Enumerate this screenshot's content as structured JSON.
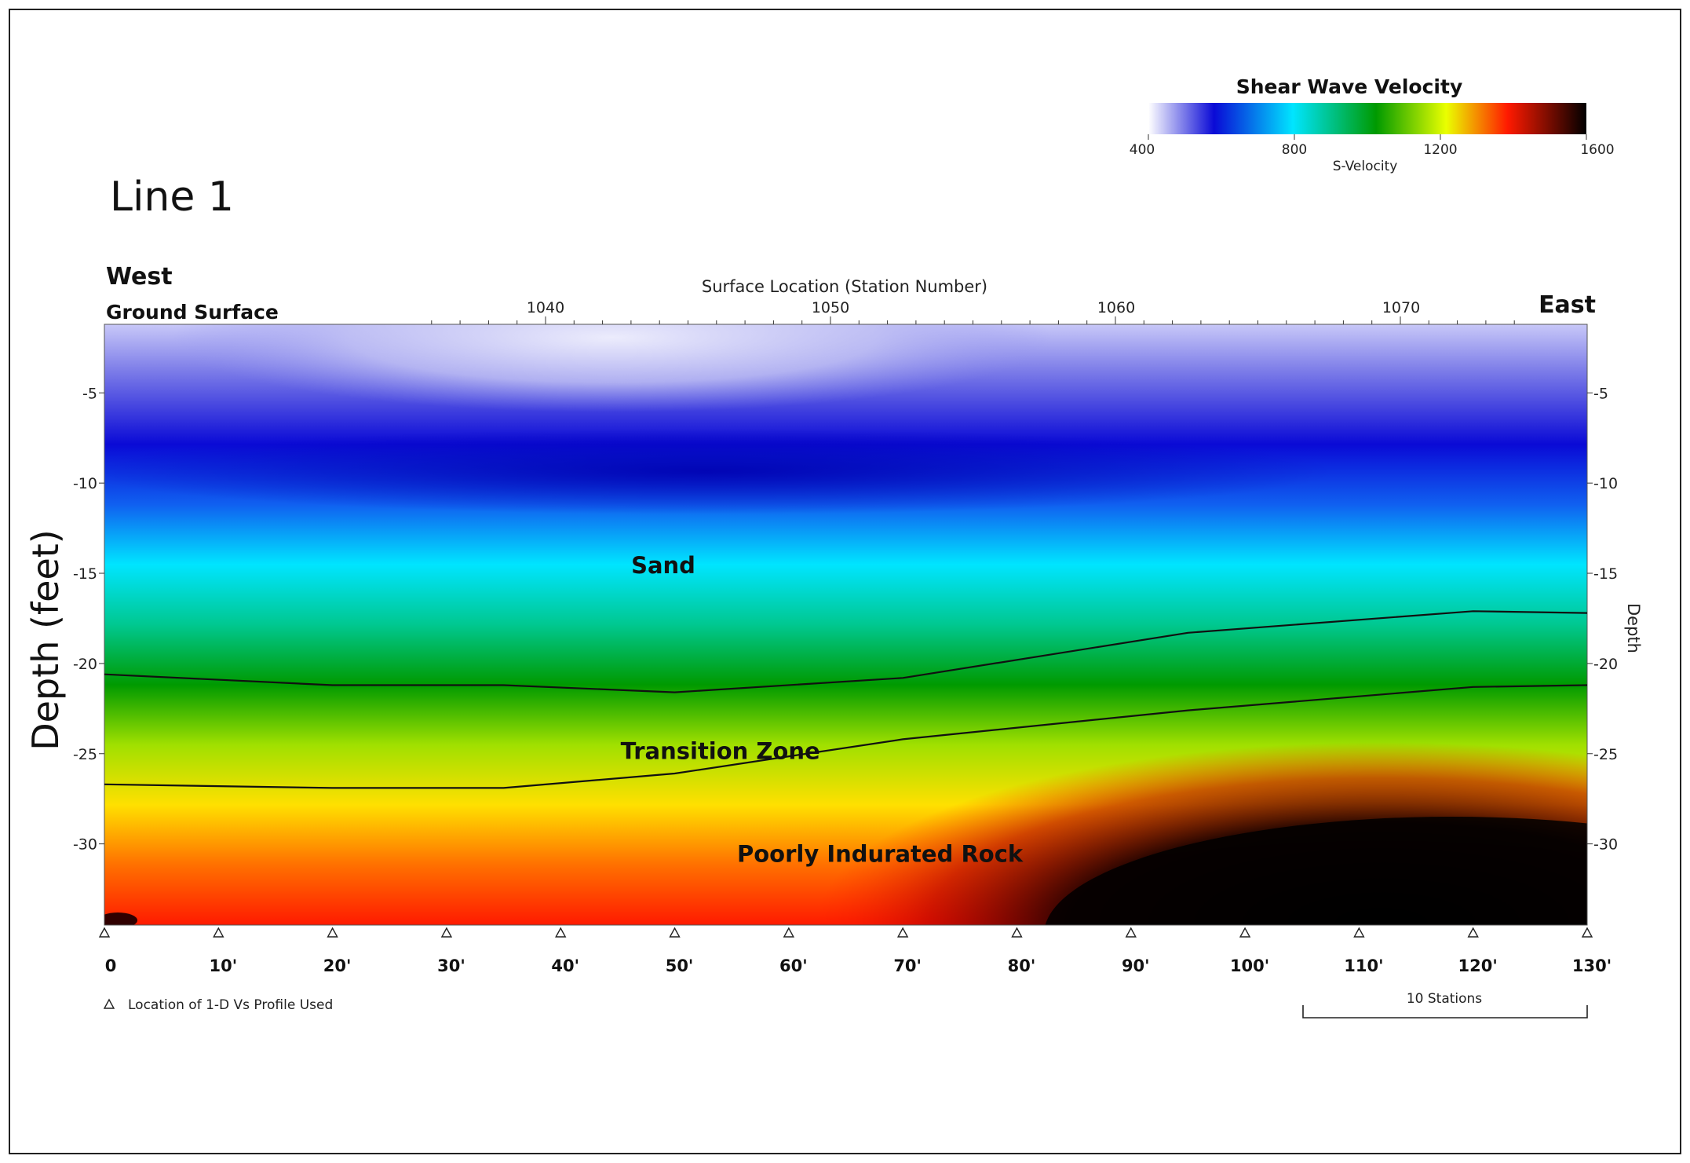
{
  "chart_data": {
    "type": "heatmap",
    "title": "Line 1",
    "xlabel": "Surface Location (Station Number)",
    "ylabel": "Depth (feet)",
    "ylabel_right": "Depth",
    "left_label": "West",
    "right_label": "East",
    "surface_label": "Ground Surface",
    "station_ticks": [
      1040,
      1050,
      1060,
      1070
    ],
    "distance_ticks": [
      "0",
      "10'",
      "20'",
      "30'",
      "40'",
      "50'",
      "60'",
      "70'",
      "80'",
      "90'",
      "100'",
      "110'",
      "120'",
      "130'"
    ],
    "distance_values": [
      0,
      10,
      20,
      30,
      40,
      50,
      60,
      70,
      80,
      90,
      100,
      110,
      120,
      130
    ],
    "depth_ticks": [
      -5,
      -10,
      -15,
      -20,
      -25,
      -30
    ],
    "depth_range": [
      -1.2,
      -34.5
    ],
    "distance_range": [
      0,
      130
    ],
    "colorbar": {
      "title": "Shear Wave Velocity",
      "label": "S-Velocity",
      "ticks": [
        400,
        800,
        1200,
        1600
      ],
      "range": [
        400,
        1600
      ],
      "colors": [
        "#ffffff",
        "#0a0ad6",
        "#00e5ff",
        "#009a00",
        "#eaff00",
        "#ff1a00",
        "#000000"
      ]
    },
    "layers": [
      {
        "name": "Sand",
        "label_x": 49,
        "label_depth": -15
      },
      {
        "name": "Transition Zone",
        "label_x": 54,
        "label_depth": -25.3
      },
      {
        "name": "Poorly Indurated Rock",
        "label_x": 68,
        "label_depth": -31
      }
    ],
    "boundaries": [
      {
        "name": "upper",
        "points": [
          [
            0,
            -20.6
          ],
          [
            20,
            -21.2
          ],
          [
            35,
            -21.2
          ],
          [
            50,
            -21.6
          ],
          [
            70,
            -20.8
          ],
          [
            95,
            -18.3
          ],
          [
            120,
            -17.1
          ],
          [
            130,
            -17.2
          ]
        ]
      },
      {
        "name": "lower",
        "points": [
          [
            0,
            -26.7
          ],
          [
            20,
            -26.9
          ],
          [
            35,
            -26.9
          ],
          [
            50,
            -26.1
          ],
          [
            70,
            -24.2
          ],
          [
            95,
            -22.6
          ],
          [
            120,
            -21.3
          ],
          [
            130,
            -21.2
          ]
        ]
      }
    ],
    "profile_marker_legend": "Location of 1-D Vs Profile Used",
    "scale_bar_label": "10 Stations"
  }
}
